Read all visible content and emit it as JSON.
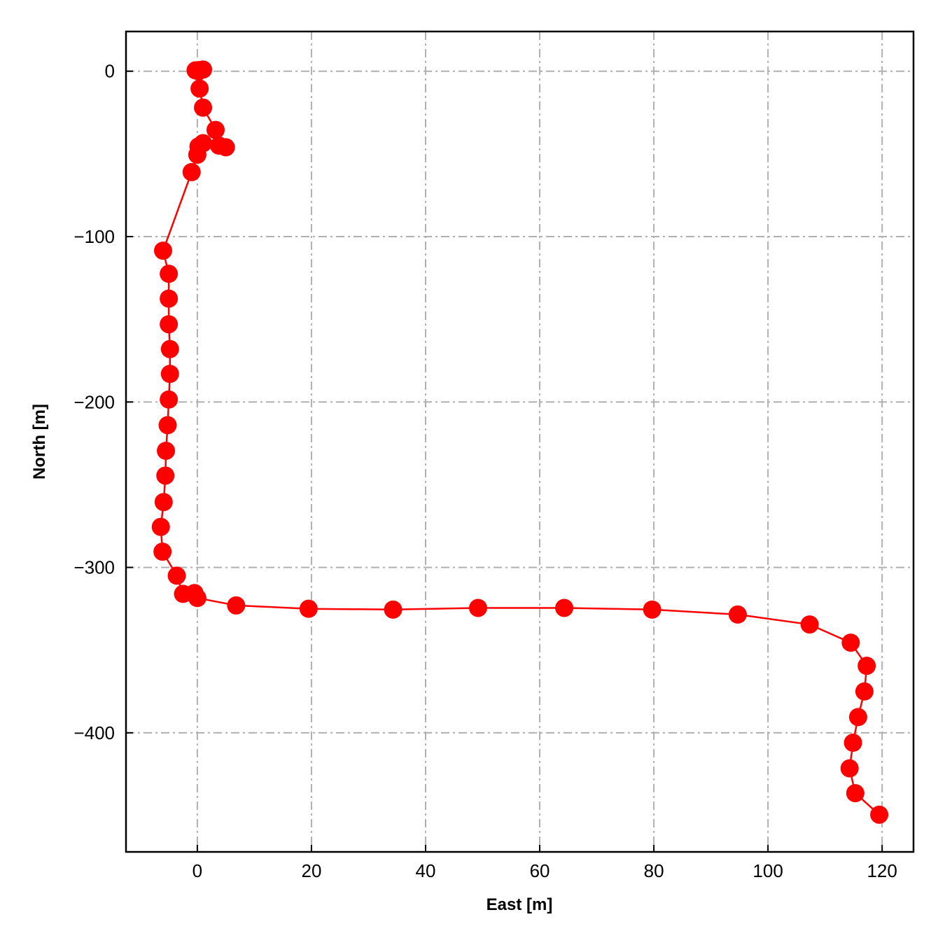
{
  "chart_data": {
    "type": "line",
    "title": "",
    "xlabel": "East [m]",
    "ylabel": "North [m]",
    "xlim": [
      -12.5,
      125.5
    ],
    "ylim": [
      -472,
      24
    ],
    "xticks": [
      0,
      20,
      40,
      60,
      80,
      100,
      120
    ],
    "yticks": [
      0,
      -100,
      -200,
      -300,
      -400
    ],
    "xtick_labels": [
      "0",
      "20",
      "40",
      "60",
      "80",
      "100",
      "120"
    ],
    "ytick_labels": [
      "0",
      "−100",
      "−200",
      "−300",
      "−400"
    ],
    "grid": true,
    "legend": "none",
    "color": "#ff0000",
    "series": [
      {
        "marker": "circle",
        "points": [
          [
            -0.3,
            0.5
          ],
          [
            0.2,
            0.0
          ],
          [
            0.6,
            0.8
          ],
          [
            1.0,
            1.0
          ],
          [
            0.4,
            -10.5
          ],
          [
            1.0,
            -22.0
          ],
          [
            3.2,
            -35.5
          ],
          [
            3.8,
            -45.0
          ],
          [
            5.0,
            -46.0
          ],
          [
            1.0,
            -43.5
          ],
          [
            0.2,
            -45.5
          ],
          [
            0.0,
            -50.5
          ],
          [
            -1.0,
            -61.0
          ],
          [
            -6.0,
            -108.5
          ],
          [
            -5.0,
            -122.5
          ],
          [
            -5.0,
            -137.5
          ],
          [
            -5.0,
            -153.0
          ],
          [
            -4.8,
            -168.0
          ],
          [
            -4.8,
            -183.0
          ],
          [
            -5.0,
            -198.5
          ],
          [
            -5.2,
            -214.0
          ],
          [
            -5.5,
            -229.5
          ],
          [
            -5.6,
            -244.5
          ],
          [
            -5.9,
            -260.5
          ],
          [
            -6.4,
            -275.5
          ],
          [
            -6.1,
            -290.5
          ],
          [
            -3.6,
            -305.0
          ],
          [
            -2.5,
            -316.0
          ],
          [
            -0.5,
            -315.5
          ],
          [
            0.0,
            -318.5
          ],
          [
            6.8,
            -323.0
          ],
          [
            19.5,
            -325.0
          ],
          [
            34.3,
            -325.5
          ],
          [
            49.2,
            -324.5
          ],
          [
            64.3,
            -324.5
          ],
          [
            79.7,
            -325.5
          ],
          [
            94.7,
            -328.5
          ],
          [
            107.3,
            -334.5
          ],
          [
            114.5,
            -345.5
          ],
          [
            117.3,
            -359.5
          ],
          [
            116.9,
            -375.0
          ],
          [
            115.8,
            -390.5
          ],
          [
            114.9,
            -406.0
          ],
          [
            114.3,
            -421.5
          ],
          [
            115.3,
            -436.5
          ],
          [
            119.5,
            -449.5
          ]
        ]
      }
    ]
  }
}
